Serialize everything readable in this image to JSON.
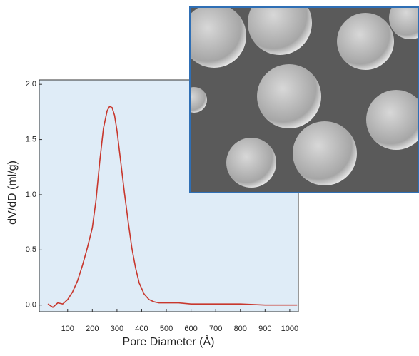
{
  "chart_data": {
    "type": "line",
    "x_label": "Pore Diameter (Å)",
    "y_label": "dV/dD (ml/g)",
    "xlim": [
      -15,
      1035
    ],
    "ylim": [
      -0.06,
      2.04
    ],
    "xticks": [
      100,
      200,
      300,
      400,
      500,
      600,
      700,
      800,
      900,
      1000
    ],
    "yticks": [
      {
        "value": 0,
        "label": "0.0"
      },
      0.5,
      {
        "value": 1,
        "label": "1.0"
      },
      1.5,
      {
        "value": 2,
        "label": "2.0"
      }
    ],
    "series": [
      {
        "color": "#c8372d",
        "x": [
          20,
          40,
          60,
          80,
          100,
          120,
          140,
          160,
          180,
          200,
          215,
          230,
          245,
          260,
          270,
          280,
          290,
          300,
          315,
          330,
          345,
          360,
          375,
          390,
          410,
          430,
          450,
          470,
          500,
          550,
          600,
          700,
          800,
          900,
          1030
        ],
        "values": [
          0.01,
          -0.02,
          0.02,
          0.01,
          0.05,
          0.12,
          0.22,
          0.36,
          0.52,
          0.7,
          0.95,
          1.3,
          1.6,
          1.76,
          1.8,
          1.79,
          1.72,
          1.58,
          1.3,
          1.02,
          0.76,
          0.52,
          0.34,
          0.2,
          0.1,
          0.05,
          0.03,
          0.02,
          0.02,
          0.02,
          0.01,
          0.01,
          0.01,
          0.0,
          0.0
        ]
      }
    ]
  }
}
